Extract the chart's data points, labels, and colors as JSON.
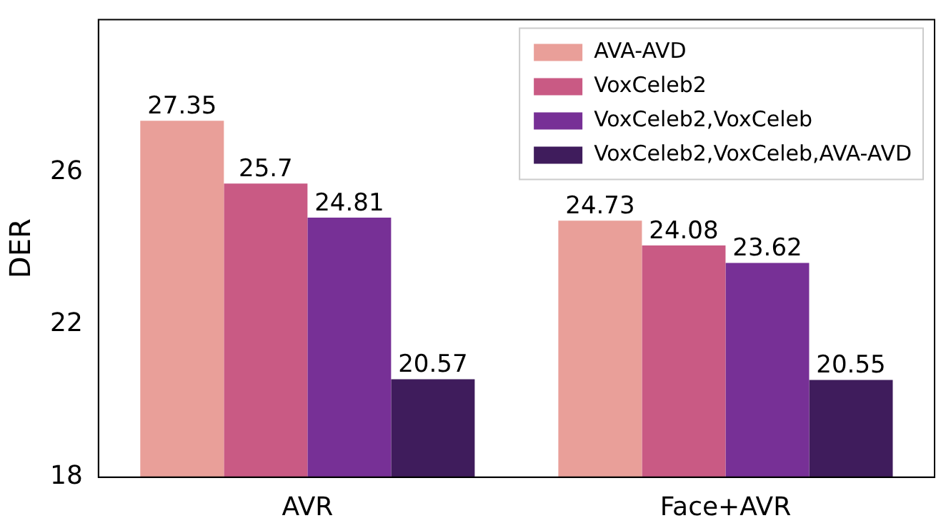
{
  "chart_data": {
    "type": "bar",
    "ylabel": "DER",
    "categories": [
      "AVR",
      "Face+AVR"
    ],
    "series": [
      {
        "name": "AVA-AVD",
        "color": "#e99f99",
        "values": [
          27.35,
          24.73
        ]
      },
      {
        "name": "VoxCeleb2",
        "color": "#c95a84",
        "values": [
          25.7,
          24.08
        ]
      },
      {
        "name": "VoxCeleb2,VoxCeleb",
        "color": "#773096",
        "values": [
          24.81,
          23.62
        ]
      },
      {
        "name": "VoxCeleb2,VoxCeleb,AVA-AVD",
        "color": "#3f1c5c",
        "values": [
          20.57,
          20.55
        ]
      }
    ],
    "ylim": [
      18,
      30
    ],
    "yticks": [
      18,
      22,
      26
    ],
    "grid": false,
    "legend": "top right",
    "data_labels": true
  }
}
